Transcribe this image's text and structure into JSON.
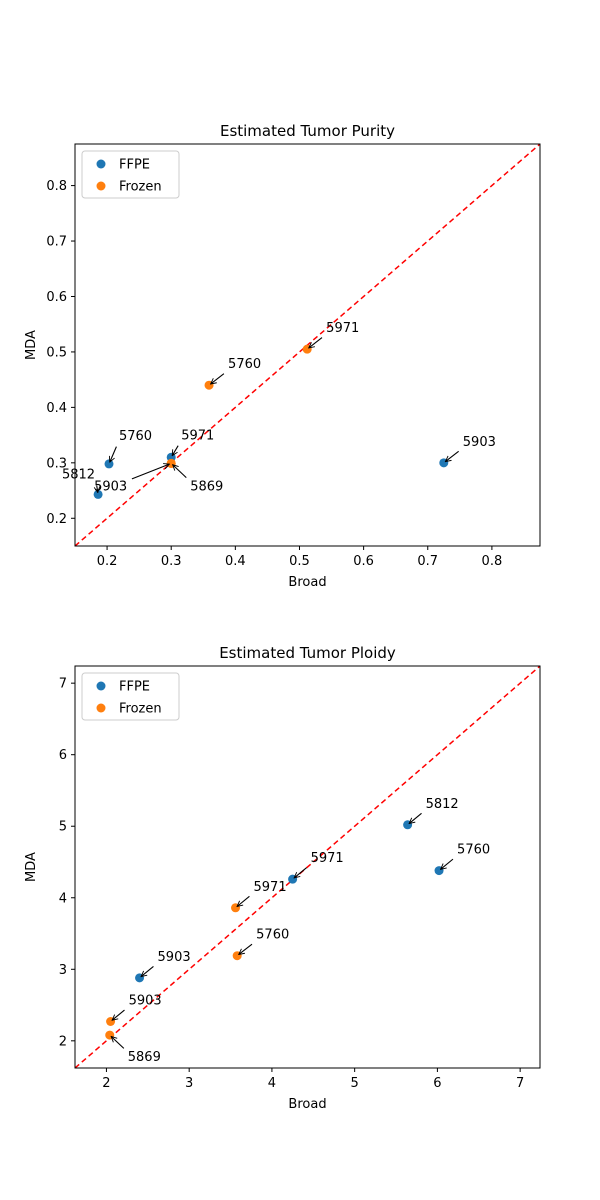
{
  "colors": {
    "FFPE": "#1f77b4",
    "Frozen": "#ff7f0e",
    "diagonal": "#ff0000",
    "arrow": "#000000"
  },
  "chart_data": [
    {
      "type": "scatter",
      "title": "Estimated Tumor Purity",
      "xlabel": "Broad",
      "ylabel": "MDA",
      "xlim": [
        0.15,
        0.875
      ],
      "ylim": [
        0.15,
        0.875
      ],
      "xticks": [
        "0.2",
        "0.3",
        "0.4",
        "0.5",
        "0.6",
        "0.7",
        "0.8"
      ],
      "yticks": [
        "0.2",
        "0.3",
        "0.4",
        "0.5",
        "0.6",
        "0.7",
        "0.8"
      ],
      "grid": false,
      "legend_position": "top-left",
      "reference_line": "y = x",
      "series": [
        {
          "name": "FFPE",
          "points": [
            {
              "x": 0.203,
              "y": 0.298,
              "label": "5760"
            },
            {
              "x": 0.186,
              "y": 0.243,
              "label": "5812"
            },
            {
              "x": 0.725,
              "y": 0.3,
              "label": "5903"
            },
            {
              "x": 0.3,
              "y": 0.31,
              "label": "5971"
            }
          ]
        },
        {
          "name": "Frozen",
          "points": [
            {
              "x": 0.359,
              "y": 0.44,
              "label": "5760"
            },
            {
              "x": 0.3,
              "y": 0.299,
              "label": "5903"
            },
            {
              "x": 0.3,
              "y": 0.299,
              "label": "5869"
            },
            {
              "x": 0.512,
              "y": 0.505,
              "label": "5971"
            }
          ]
        }
      ]
    },
    {
      "type": "scatter",
      "title": "Estimated Tumor Ploidy",
      "xlabel": "Broad",
      "ylabel": "MDA",
      "xlim": [
        1.62,
        7.24
      ],
      "ylim": [
        1.62,
        7.24
      ],
      "xticks": [
        "2",
        "3",
        "4",
        "5",
        "6",
        "7"
      ],
      "yticks": [
        "2",
        "3",
        "4",
        "5",
        "6",
        "7"
      ],
      "grid": false,
      "legend_position": "top-left",
      "reference_line": "y = x",
      "series": [
        {
          "name": "FFPE",
          "points": [
            {
              "x": 5.64,
              "y": 5.02,
              "label": "5812"
            },
            {
              "x": 6.02,
              "y": 4.38,
              "label": "5760"
            },
            {
              "x": 4.25,
              "y": 4.26,
              "label": "5971"
            },
            {
              "x": 2.4,
              "y": 2.88,
              "label": "5903"
            }
          ]
        },
        {
          "name": "Frozen",
          "points": [
            {
              "x": 3.56,
              "y": 3.86,
              "label": "5971"
            },
            {
              "x": 3.58,
              "y": 3.19,
              "label": "5760"
            },
            {
              "x": 2.05,
              "y": 2.27,
              "label": "5903"
            },
            {
              "x": 2.04,
              "y": 2.08,
              "label": "5869"
            }
          ]
        }
      ]
    }
  ]
}
